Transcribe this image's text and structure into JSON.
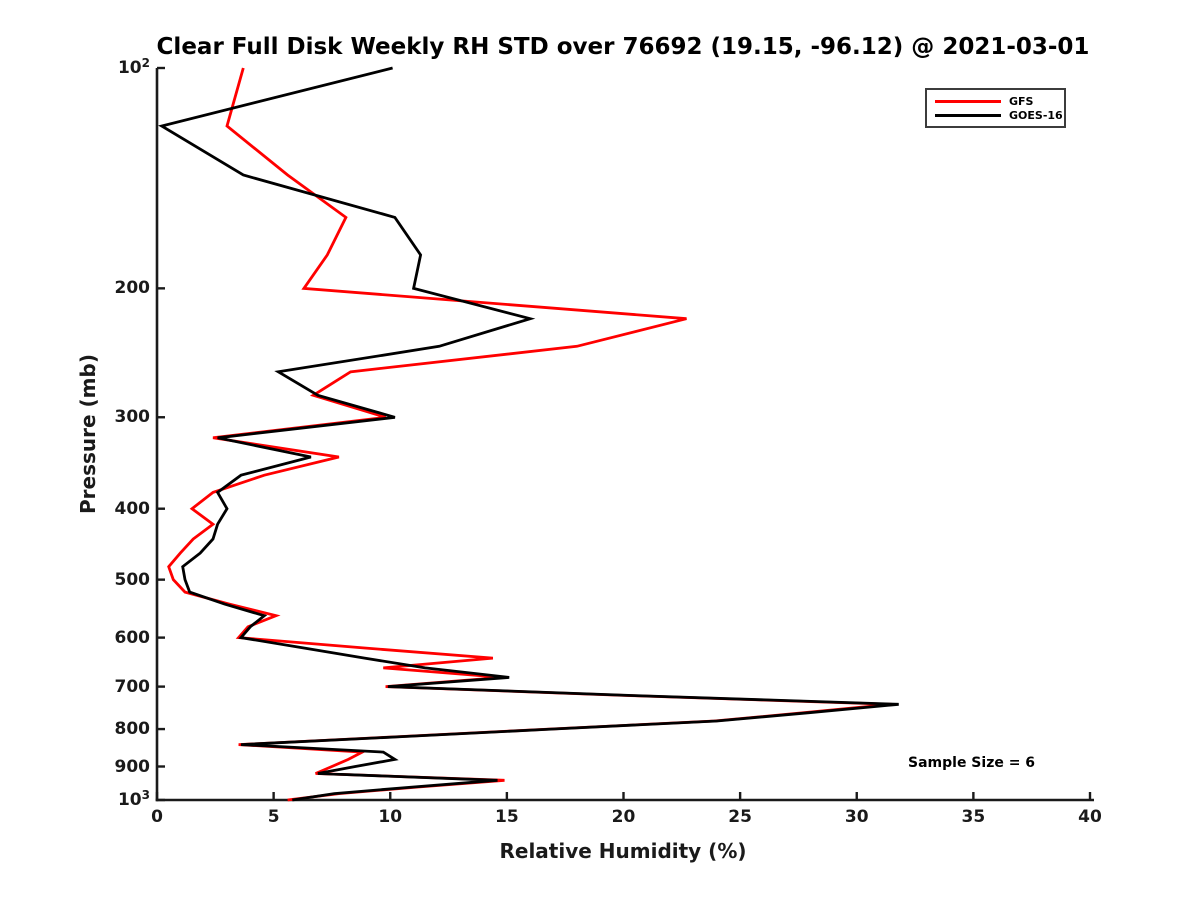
{
  "chart": {
    "title": "Clear Full Disk Weekly RH STD over 76692 (19.15, -96.12) @ 2021-03-01",
    "xlabel": "Relative Humidity (%)",
    "ylabel": "Pressure (mb)",
    "annotation": "Sample Size = 6"
  },
  "chart_data": {
    "type": "line",
    "title": "Clear Full Disk Weekly RH STD over 76692 (19.15, -96.12) @ 2021-03-01",
    "xlabel": "Relative Humidity (%)",
    "ylabel": "Pressure (mb)",
    "annotation": "Sample Size = 6",
    "sample_size": 6,
    "x_axis": {
      "min": 0,
      "max": 40,
      "ticks": [
        0,
        5,
        10,
        15,
        20,
        25,
        30,
        35,
        40
      ],
      "grid": false
    },
    "y_axis": {
      "scale": "log",
      "min": 100,
      "max": 1000,
      "inverted": true,
      "ticks": [
        {
          "value": 100,
          "label": "10^2"
        },
        {
          "value": 200,
          "label": "200"
        },
        {
          "value": 300,
          "label": "300"
        },
        {
          "value": 400,
          "label": "400"
        },
        {
          "value": 500,
          "label": "500"
        },
        {
          "value": 600,
          "label": "600"
        },
        {
          "value": 700,
          "label": "700"
        },
        {
          "value": 800,
          "label": "800"
        },
        {
          "value": 900,
          "label": "900"
        },
        {
          "value": 1000,
          "label": "10^3"
        }
      ],
      "grid": false
    },
    "legend_position": "top-right",
    "axis_color": "#1a1a1a",
    "pressure_levels": [
      100,
      120,
      140,
      160,
      180,
      200,
      220,
      240,
      260,
      280,
      300,
      320,
      340,
      360,
      380,
      400,
      420,
      440,
      460,
      480,
      500,
      520,
      540,
      560,
      580,
      600,
      620,
      640,
      660,
      680,
      700,
      720,
      740,
      760,
      780,
      800,
      820,
      840,
      860,
      880,
      900,
      920,
      940,
      960,
      980,
      1000
    ],
    "series": [
      {
        "name": "GFS",
        "color": "#ff0000",
        "values": [
          3.7,
          3.0,
          5.6,
          8.1,
          7.3,
          6.3,
          22.7,
          18.0,
          8.3,
          6.7,
          9.8,
          2.4,
          7.8,
          4.6,
          2.4,
          1.5,
          2.4,
          1.55,
          1.0,
          0.5,
          0.7,
          1.2,
          3.1,
          5.1,
          3.9,
          3.5,
          8.9,
          14.4,
          9.7,
          14.8,
          9.8,
          20.3,
          31.5,
          27.7,
          23.9,
          16.8,
          10.2,
          3.5,
          8.8,
          8.2,
          7.5,
          6.8,
          14.9,
          11.2,
          7.8,
          5.6
        ]
      },
      {
        "name": "GOES-16",
        "color": "#000000",
        "values": [
          10.1,
          0.2,
          3.7,
          10.2,
          11.3,
          11.0,
          16.0,
          12.1,
          5.2,
          6.9,
          10.2,
          2.6,
          6.6,
          3.6,
          2.6,
          3.0,
          2.6,
          2.4,
          1.85,
          1.1,
          1.2,
          1.4,
          2.9,
          4.6,
          4.0,
          3.6,
          6.3,
          8.9,
          11.5,
          15.1,
          9.9,
          20.5,
          31.8,
          27.9,
          24.0,
          16.9,
          10.3,
          3.6,
          9.7,
          10.2,
          8.5,
          6.9,
          14.6,
          11.0,
          7.6,
          5.8
        ]
      }
    ]
  }
}
